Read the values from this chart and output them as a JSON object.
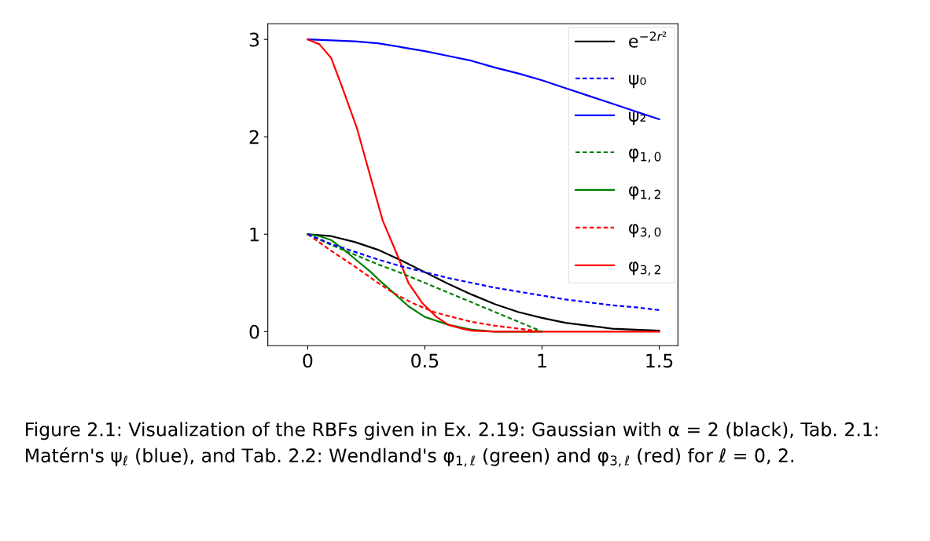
{
  "chart_data": {
    "type": "line",
    "xlim": [
      -0.17,
      1.58
    ],
    "ylim": [
      -0.145,
      3.16
    ],
    "xticks": [
      0,
      0.5,
      1,
      1.5
    ],
    "yticks": [
      0,
      1,
      2,
      3
    ],
    "grid": false,
    "legend": "top right",
    "marker": "none",
    "annotations": [
      "Figure 2.1: Visualization of the RBFs given in Ex. 2.19: Gaussian with α = 2 (black), Tab. 2.1: Matérn's ψ$_{ℓ}$ (blue), and Tab. 2.2: Wendland's φ$_{1,ℓ}$ (green) and φ$_{3,ℓ}$ (red) for ℓ = 0, 2."
    ],
    "series": [
      {
        "name": "e$^{−2r²}$",
        "color": "#000000",
        "line_style": "solid",
        "x": [
          0,
          0.1,
          0.2,
          0.3,
          0.4,
          0.5,
          0.6,
          0.7,
          0.8,
          0.9,
          1,
          1.1,
          1.2,
          1.3,
          1.4,
          1.5
        ],
        "values": [
          1,
          0.98,
          0.92,
          0.84,
          0.73,
          0.61,
          0.49,
          0.38,
          0.28,
          0.2,
          0.14,
          0.09,
          0.06,
          0.03,
          0.02,
          0.01
        ]
      },
      {
        "name": "ψ₀",
        "color": "#0000ff",
        "line_style": "dashed",
        "x": [
          0,
          0.1,
          0.2,
          0.3,
          0.4,
          0.5,
          0.6,
          0.7,
          0.8,
          0.9,
          1,
          1.1,
          1.2,
          1.3,
          1.4,
          1.5
        ],
        "values": [
          1,
          0.9,
          0.82,
          0.74,
          0.67,
          0.61,
          0.55,
          0.5,
          0.45,
          0.41,
          0.37,
          0.33,
          0.3,
          0.27,
          0.25,
          0.22
        ]
      },
      {
        "name": "ψ₂",
        "color": "#0000ff",
        "line_style": "solid",
        "x": [
          0,
          0.1,
          0.2,
          0.3,
          0.4,
          0.5,
          0.6,
          0.7,
          0.8,
          0.9,
          1,
          1.1,
          1.2,
          1.3,
          1.4,
          1.5
        ],
        "values": [
          3,
          2.99,
          2.98,
          2.96,
          2.92,
          2.88,
          2.83,
          2.78,
          2.71,
          2.65,
          2.58,
          2.5,
          2.42,
          2.34,
          2.26,
          2.18
        ]
      },
      {
        "name": "φ$_{1,0}$",
        "color": "#008000",
        "line_style": "dashed",
        "x": [
          0,
          0.1,
          0.2,
          0.3,
          0.4,
          0.5,
          0.6,
          0.7,
          0.8,
          0.9,
          1
        ],
        "values": [
          1,
          0.89,
          0.79,
          0.69,
          0.6,
          0.5,
          0.4,
          0.3,
          0.2,
          0.1,
          0
        ]
      },
      {
        "name": "φ$_{1,2}$",
        "color": "#008000",
        "line_style": "solid",
        "x": [
          0,
          0.05,
          0.1,
          0.15,
          0.2,
          0.27,
          0.3,
          0.37,
          0.43,
          0.5,
          0.6,
          0.7,
          0.8,
          1
        ],
        "values": [
          1,
          0.98,
          0.94,
          0.85,
          0.75,
          0.61,
          0.54,
          0.39,
          0.26,
          0.15,
          0.07,
          0.02,
          0,
          0
        ]
      },
      {
        "name": "φ$_{3,0}$",
        "color": "#ff0000",
        "line_style": "dashed",
        "x": [
          0,
          0.1,
          0.2,
          0.3,
          0.37,
          0.45,
          0.54,
          0.6,
          0.7,
          0.8,
          0.9,
          1
        ],
        "values": [
          1,
          0.83,
          0.67,
          0.5,
          0.39,
          0.29,
          0.2,
          0.16,
          0.1,
          0.06,
          0.03,
          0
        ]
      },
      {
        "name": "φ$_{3,2}$",
        "color": "#ff0000",
        "line_style": "solid",
        "x": [
          0,
          0.05,
          0.1,
          0.15,
          0.21,
          0.27,
          0.32,
          0.38,
          0.43,
          0.49,
          0.55,
          0.6,
          0.66,
          0.7,
          0.8,
          1,
          1.5
        ],
        "values": [
          3,
          2.95,
          2.81,
          2.49,
          2.09,
          1.57,
          1.14,
          0.8,
          0.5,
          0.29,
          0.15,
          0.07,
          0.03,
          0.01,
          0,
          0,
          0
        ]
      }
    ]
  }
}
